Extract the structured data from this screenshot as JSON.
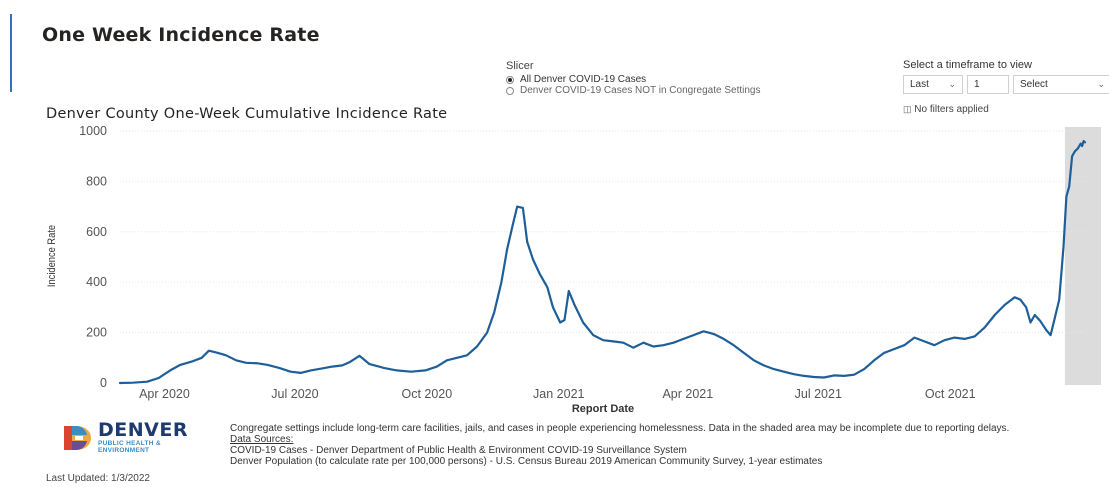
{
  "page_title": "One Week Incidence Rate",
  "slicer": {
    "label": "Slicer",
    "options": [
      "All Denver COVID-19 Cases",
      "Denver COVID-19 Cases NOT in Congregate Settings"
    ],
    "selected_index": 0
  },
  "timeframe": {
    "label": "Select a timeframe to view",
    "period_value": "Last",
    "count_value": "1",
    "unit_value": "Select",
    "filters_text": "No filters applied"
  },
  "footer": {
    "logo_main": "DENVER",
    "logo_sub": "PUBLIC HEALTH & ENVIRONMENT",
    "last_updated": "Last Updated: 1/3/2022",
    "note": "Congregate settings include long-term care facilities, jails, and cases in people experiencing homelessness. Data in the shaded area may be incomplete due to reporting delays.",
    "sources_label": "Data Sources:",
    "source_1": "COVID-19 Cases - Denver Department of Public Health & Environment COVID-19 Surveillance System",
    "source_2": "Denver Population (to calculate rate per 100,000 persons) - U.S. Census Bureau 2019 American Community Survey, 1-year estimates"
  },
  "colors": {
    "line": "#1f5f99",
    "accent": "#3b6fb6",
    "shade": "#dcdcdc",
    "grid": "#e6e6e6"
  },
  "chart_data": {
    "type": "line",
    "title": "Denver County One-Week Cumulative Incidence Rate",
    "xlabel": "Report Date",
    "ylabel": "Incidence Rate",
    "ylim": [
      0,
      1000
    ],
    "yticks": [
      0,
      200,
      400,
      600,
      800,
      1000
    ],
    "xlim": [
      "2020-03-01",
      "2022-01-03"
    ],
    "xticks": [
      {
        "date": "2020-04-01",
        "label": "Apr 2020"
      },
      {
        "date": "2020-07-01",
        "label": "Jul 2020"
      },
      {
        "date": "2020-10-01",
        "label": "Oct 2020"
      },
      {
        "date": "2021-01-01",
        "label": "Jan 2021"
      },
      {
        "date": "2021-04-01",
        "label": "Apr 2021"
      },
      {
        "date": "2021-07-01",
        "label": "Jul 2021"
      },
      {
        "date": "2021-10-01",
        "label": "Oct 2021"
      }
    ],
    "grid": true,
    "shaded_region": [
      "2021-12-20",
      "2022-01-03"
    ],
    "series": [
      {
        "x": [
          "2020-03-01",
          "2020-03-10",
          "2020-03-20",
          "2020-03-28",
          "2020-04-05",
          "2020-04-12",
          "2020-04-20",
          "2020-04-27",
          "2020-05-02",
          "2020-05-08",
          "2020-05-14",
          "2020-05-21",
          "2020-05-28",
          "2020-06-05",
          "2020-06-12",
          "2020-06-20",
          "2020-06-28",
          "2020-07-05",
          "2020-07-12",
          "2020-07-20",
          "2020-07-27",
          "2020-08-03",
          "2020-08-08",
          "2020-08-15",
          "2020-08-22",
          "2020-09-01",
          "2020-09-10",
          "2020-09-20",
          "2020-09-30",
          "2020-10-08",
          "2020-10-15",
          "2020-10-22",
          "2020-10-29",
          "2020-11-05",
          "2020-11-12",
          "2020-11-17",
          "2020-11-22",
          "2020-11-26",
          "2020-11-30",
          "2020-12-03",
          "2020-12-07",
          "2020-12-10",
          "2020-12-14",
          "2020-12-19",
          "2020-12-24",
          "2020-12-28",
          "2021-01-02",
          "2021-01-05",
          "2021-01-08",
          "2021-01-12",
          "2021-01-18",
          "2021-01-25",
          "2021-02-01",
          "2021-02-08",
          "2021-02-15",
          "2021-02-22",
          "2021-03-01",
          "2021-03-08",
          "2021-03-15",
          "2021-03-22",
          "2021-03-29",
          "2021-04-05",
          "2021-04-12",
          "2021-04-19",
          "2021-04-26",
          "2021-05-03",
          "2021-05-10",
          "2021-05-17",
          "2021-05-24",
          "2021-05-31",
          "2021-06-07",
          "2021-06-14",
          "2021-06-21",
          "2021-06-28",
          "2021-07-05",
          "2021-07-12",
          "2021-07-19",
          "2021-07-26",
          "2021-08-02",
          "2021-08-09",
          "2021-08-16",
          "2021-08-23",
          "2021-08-30",
          "2021-09-06",
          "2021-09-13",
          "2021-09-20",
          "2021-09-27",
          "2021-10-04",
          "2021-10-11",
          "2021-10-18",
          "2021-10-25",
          "2021-11-01",
          "2021-11-08",
          "2021-11-15",
          "2021-11-19",
          "2021-11-23",
          "2021-11-26",
          "2021-11-29",
          "2021-12-03",
          "2021-12-07",
          "2021-12-10",
          "2021-12-13",
          "2021-12-16",
          "2021-12-19",
          "2021-12-21",
          "2021-12-23",
          "2021-12-25",
          "2021-12-27",
          "2021-12-29",
          "2021-12-31",
          "2022-01-01",
          "2022-01-02",
          "2022-01-03"
        ],
        "y": [
          0,
          1,
          5,
          20,
          50,
          72,
          85,
          100,
          128,
          120,
          110,
          90,
          80,
          78,
          72,
          60,
          45,
          40,
          50,
          58,
          65,
          70,
          82,
          108,
          75,
          60,
          50,
          45,
          50,
          65,
          90,
          100,
          110,
          145,
          200,
          280,
          400,
          530,
          630,
          700,
          695,
          560,
          490,
          430,
          380,
          300,
          240,
          250,
          365,
          310,
          240,
          190,
          170,
          165,
          160,
          140,
          160,
          145,
          150,
          160,
          175,
          190,
          205,
          195,
          175,
          150,
          120,
          90,
          70,
          55,
          45,
          35,
          28,
          24,
          22,
          30,
          28,
          33,
          55,
          90,
          120,
          135,
          150,
          180,
          165,
          150,
          170,
          180,
          175,
          185,
          220,
          270,
          310,
          340,
          330,
          300,
          240,
          270,
          245,
          210,
          190,
          260,
          330,
          540,
          740,
          780,
          900,
          920,
          930,
          950,
          940,
          960,
          955
        ]
      }
    ]
  }
}
